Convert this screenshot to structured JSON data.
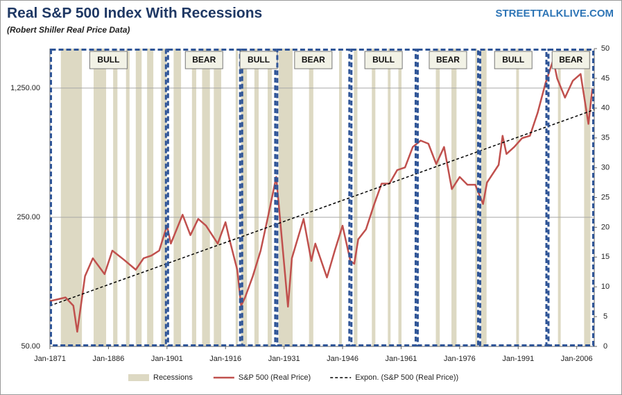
{
  "chart_data": {
    "type": "line",
    "title": "Real S&P 500 Index With Recessions",
    "subtitle": "(Robert Shiller Real Price Data)",
    "source": "STREETTALKLIVE.COM",
    "log_y": true,
    "grid": true,
    "legend": "bottom",
    "xlim": [
      1871,
      2010.5
    ],
    "xticks": [
      {
        "value": 1871,
        "label": "Jan-1871"
      },
      {
        "value": 1886,
        "label": "Jan-1886"
      },
      {
        "value": 1901,
        "label": "Jan-1901"
      },
      {
        "value": 1916,
        "label": "Jan-1916"
      },
      {
        "value": 1931,
        "label": "Jan-1931"
      },
      {
        "value": 1946,
        "label": "Jan-1946"
      },
      {
        "value": 1961,
        "label": "Jan-1961"
      },
      {
        "value": 1976,
        "label": "Jan-1976"
      },
      {
        "value": 1991,
        "label": "Jan-1991"
      },
      {
        "value": 2006,
        "label": "Jan-2006"
      }
    ],
    "ylim": [
      50,
      2045
    ],
    "yticks": [
      {
        "value": 50,
        "label": "50.00"
      },
      {
        "value": 250,
        "label": "250.00"
      },
      {
        "value": 1250,
        "label": "1,250.00"
      }
    ],
    "y2lim": [
      0,
      50
    ],
    "y2ticks": [
      0,
      5,
      10,
      15,
      20,
      25,
      30,
      35,
      40,
      45,
      50
    ],
    "recessions": {
      "name": "Recessions",
      "color": "#ddd9c3",
      "axis": "y2",
      "height": 50,
      "periods": [
        [
          1873.8,
          1879.2
        ],
        [
          1882.2,
          1885.4
        ],
        [
          1887.2,
          1888.3
        ],
        [
          1890.5,
          1891.4
        ],
        [
          1893.0,
          1894.5
        ],
        [
          1895.9,
          1897.5
        ],
        [
          1899.5,
          1900.9
        ],
        [
          1902.7,
          1904.6
        ],
        [
          1907.4,
          1908.5
        ],
        [
          1910.0,
          1912.0
        ],
        [
          1913.0,
          1914.9
        ],
        [
          1918.6,
          1919.2
        ],
        [
          1920.0,
          1921.5
        ],
        [
          1923.4,
          1924.5
        ],
        [
          1926.8,
          1927.9
        ],
        [
          1929.6,
          1933.2
        ],
        [
          1937.4,
          1938.5
        ],
        [
          1945.1,
          1945.8
        ],
        [
          1948.9,
          1949.8
        ],
        [
          1953.5,
          1954.4
        ],
        [
          1957.6,
          1958.3
        ],
        [
          1960.3,
          1961.1
        ],
        [
          1969.9,
          1970.9
        ],
        [
          1973.9,
          1975.2
        ],
        [
          1980.0,
          1980.5
        ],
        [
          1981.5,
          1982.9
        ],
        [
          1990.5,
          1991.2
        ],
        [
          2001.2,
          2001.9
        ],
        [
          2007.9,
          2009.5
        ]
      ]
    },
    "regimes": [
      {
        "label": "BULL",
        "start": 1871,
        "end": 1901
      },
      {
        "label": "BEAR",
        "start": 1901,
        "end": 1920
      },
      {
        "label": "BULL",
        "start": 1920,
        "end": 1929
      },
      {
        "label": "BEAR",
        "start": 1929,
        "end": 1948
      },
      {
        "label": "BULL",
        "start": 1948,
        "end": 1965
      },
      {
        "label": "BEAR",
        "start": 1965,
        "end": 1981
      },
      {
        "label": "BULL",
        "start": 1981,
        "end": 1998.5
      },
      {
        "label": "BEAR",
        "start": 1998.5,
        "end": 2010.5
      }
    ],
    "series": [
      {
        "name": "S&P 500 (Real Price)",
        "color": "#c0504d",
        "x": [
          1871,
          1873,
          1875,
          1877,
          1878,
          1880,
          1882,
          1885,
          1887,
          1890,
          1893,
          1895,
          1897,
          1899,
          1901,
          1902,
          1905,
          1907,
          1909,
          1911,
          1914,
          1916,
          1917,
          1919,
          1920,
          1921,
          1923,
          1925,
          1927,
          1929,
          1932,
          1933,
          1936,
          1938,
          1939,
          1942,
          1944,
          1946,
          1948,
          1949,
          1950,
          1952,
          1954,
          1956,
          1958,
          1960,
          1962,
          1964,
          1966,
          1968,
          1970,
          1972,
          1974,
          1976,
          1978,
          1980,
          1982,
          1983,
          1986,
          1987,
          1988,
          1990,
          1992,
          1994,
          1996,
          1998,
          2000,
          2001,
          2003,
          2005,
          2007,
          2009,
          2010
        ],
        "values": [
          88,
          90,
          92,
          83,
          60,
          120,
          150,
          123,
          165,
          147,
          130,
          150,
          155,
          165,
          225,
          180,
          258,
          200,
          245,
          225,
          180,
          235,
          190,
          130,
          83,
          92,
          120,
          165,
          258,
          413,
          82,
          150,
          245,
          145,
          180,
          118,
          165,
          225,
          145,
          140,
          190,
          215,
          290,
          380,
          380,
          450,
          465,
          600,
          650,
          625,
          485,
          600,
          355,
          413,
          375,
          375,
          295,
          385,
          480,
          690,
          550,
          600,
          670,
          690,
          920,
          1330,
          1780,
          1410,
          1110,
          1370,
          1490,
          800,
          1240
        ]
      },
      {
        "name": "Expon. (S&P 500 (Real Price))",
        "color": "#000000",
        "dashed": true,
        "x": [
          1871,
          2010.5
        ],
        "values": [
          83,
          955
        ]
      }
    ]
  }
}
